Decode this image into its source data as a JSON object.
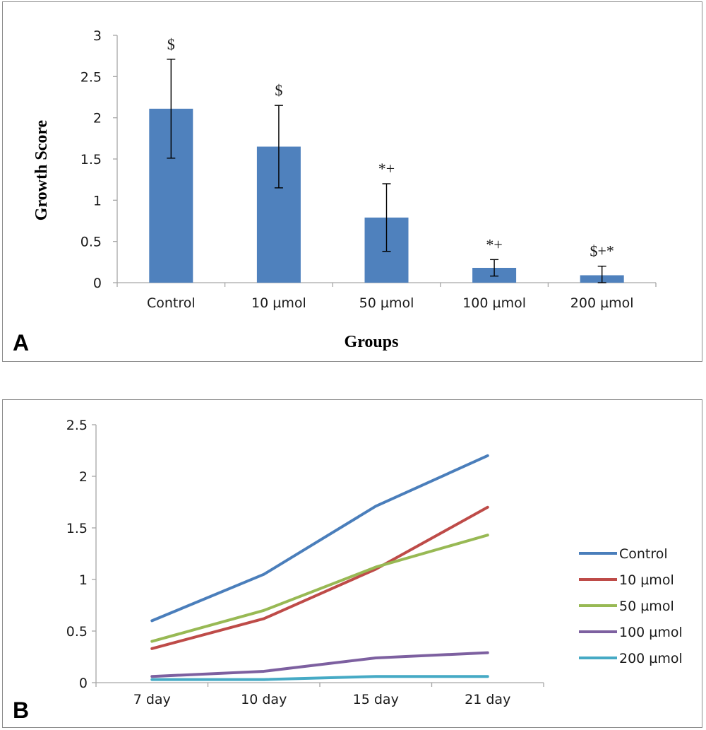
{
  "panels": {
    "a_letter": "A",
    "b_letter": "B"
  },
  "chart_data": [
    {
      "type": "bar",
      "title": "",
      "xlabel": "Groups",
      "ylabel": "Growth Score",
      "ylim": [
        0,
        3
      ],
      "yticks": [
        "0",
        "0.5",
        "1",
        "1.5",
        "2",
        "2.5",
        "3"
      ],
      "categories": [
        "Control",
        "10 µmol",
        "50 µmol",
        "100 µmol",
        "200 µmol"
      ],
      "values": [
        2.11,
        1.65,
        0.79,
        0.18,
        0.09
      ],
      "error": [
        0.6,
        0.5,
        0.41,
        0.1,
        0.11
      ],
      "annotations": [
        "$",
        "$",
        "*+",
        "*+",
        "$+*"
      ],
      "bar_color": "#4f81bd",
      "grid": false
    },
    {
      "type": "line",
      "title": "",
      "xlabel": "",
      "ylabel": "",
      "ylim": [
        0,
        2.5
      ],
      "yticks": [
        "0",
        "0.5",
        "1",
        "1.5",
        "2",
        "2.5"
      ],
      "categories": [
        "7 day",
        "10 day",
        "15 day",
        "21 day"
      ],
      "series": [
        {
          "name": "Control",
          "color": "#4a7ebb",
          "values": [
            0.6,
            1.05,
            1.71,
            2.2
          ]
        },
        {
          "name": "10  µmol",
          "color": "#be4b48",
          "values": [
            0.33,
            0.62,
            1.1,
            1.7
          ]
        },
        {
          "name": "50  µmol",
          "color": "#98b954",
          "values": [
            0.4,
            0.7,
            1.12,
            1.43
          ]
        },
        {
          "name": "100  µmol",
          "color": "#7d60a0",
          "values": [
            0.06,
            0.11,
            0.24,
            0.29
          ]
        },
        {
          "name": "200  µmol",
          "color": "#46aac5",
          "values": [
            0.03,
            0.03,
            0.06,
            0.06
          ]
        }
      ],
      "legend": "right",
      "grid": false
    }
  ]
}
